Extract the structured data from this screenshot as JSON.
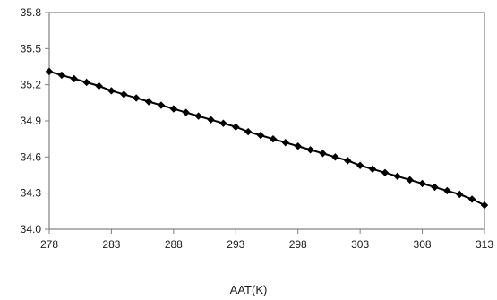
{
  "chart_data": {
    "type": "line",
    "title": "",
    "xlabel": "AAT(K)",
    "ylabel": "",
    "xlim": [
      278,
      313
    ],
    "ylim": [
      34.0,
      35.8
    ],
    "xticks": [
      "278",
      "283",
      "288",
      "293",
      "298",
      "303",
      "308",
      "313"
    ],
    "yticks": [
      "34.0",
      "34.3",
      "34.6",
      "34.9",
      "35.2",
      "35.5",
      "35.8"
    ],
    "grid": false,
    "legend": "none",
    "series": [
      {
        "marker": "diamond",
        "color": "#000000",
        "x": [
          278,
          279,
          280,
          281,
          282,
          283,
          284,
          285,
          286,
          287,
          288,
          289,
          290,
          291,
          292,
          293,
          294,
          295,
          296,
          297,
          298,
          299,
          300,
          301,
          302,
          303,
          304,
          305,
          306,
          307,
          308,
          309,
          310,
          311,
          312,
          313
        ],
        "y": [
          35.31,
          35.28,
          35.25,
          35.22,
          35.19,
          35.15,
          35.12,
          35.09,
          35.06,
          35.03,
          35.0,
          34.97,
          34.94,
          34.91,
          34.88,
          34.85,
          34.81,
          34.78,
          34.75,
          34.72,
          34.69,
          34.66,
          34.63,
          34.6,
          34.57,
          34.53,
          34.5,
          34.47,
          34.44,
          34.41,
          34.38,
          34.35,
          34.32,
          34.29,
          34.25,
          34.2
        ]
      }
    ]
  }
}
